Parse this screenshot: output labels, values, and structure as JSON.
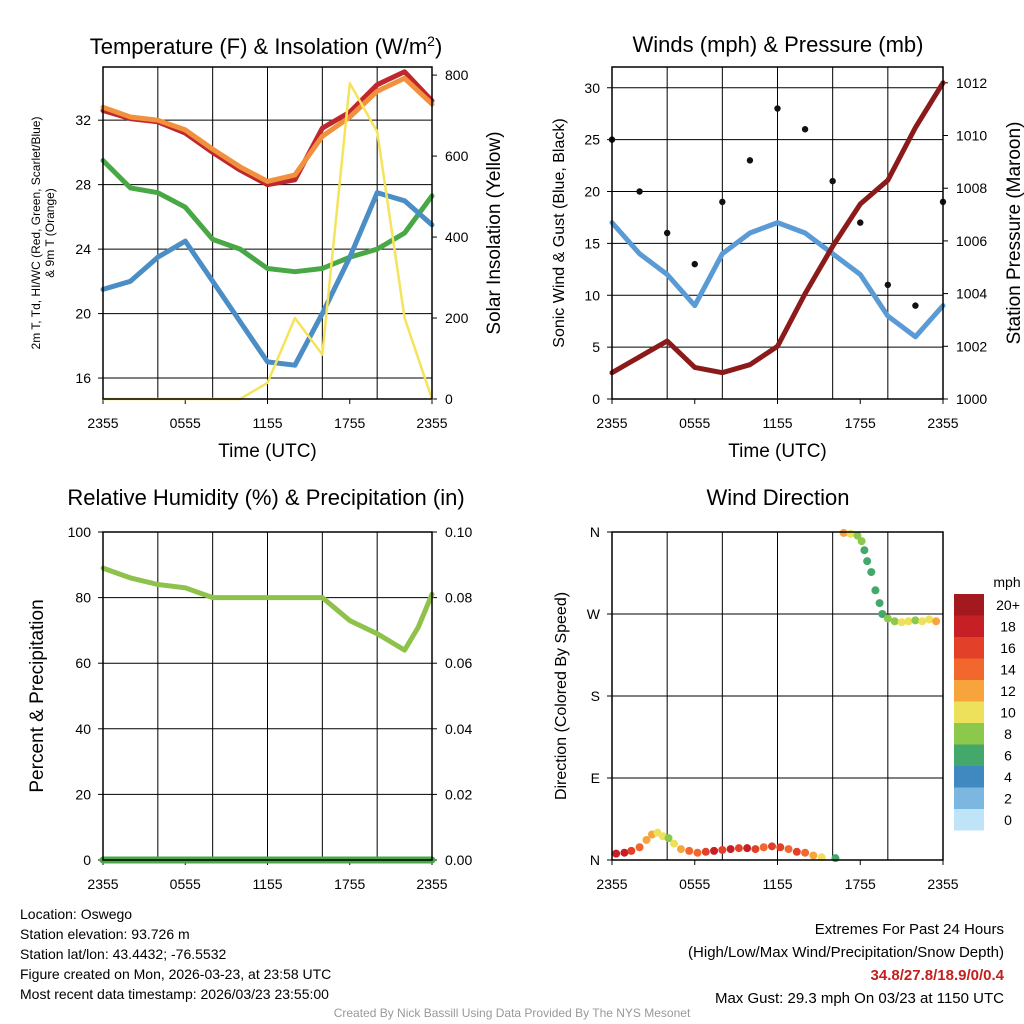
{
  "chart_data": [
    {
      "type": "line",
      "title": "Temperature (F) & Insolation (W/m",
      "title_sup": "2",
      "title_end": ")",
      "xlabel": "Time (UTC)",
      "ylabel_lines": [
        "2m T, Td, HI/WC (Red, Green, Scarlet/Blue)",
        "& 9m T (Orange)"
      ],
      "ylabel_right": "Solar Insolation (Yellow)",
      "x_ticks": [
        "2355",
        "0555",
        "1155",
        "1755",
        "2355"
      ],
      "ylim": [
        14.7,
        35.3
      ],
      "y_ticks": [
        16,
        20,
        24,
        28,
        32
      ],
      "y2lim": [
        0,
        820
      ],
      "y2_ticks": [
        0,
        200,
        400,
        600,
        800
      ],
      "x": [
        0,
        2,
        4,
        6,
        8,
        10,
        12,
        14,
        16,
        18,
        20,
        22,
        24
      ],
      "series": [
        {
          "name": "2m T",
          "color": "#c0272d",
          "values": [
            32.6,
            32.1,
            31.9,
            31.2,
            30.0,
            28.9,
            28.0,
            28.3,
            31.5,
            32.5,
            34.2,
            35.0,
            33.2
          ]
        },
        {
          "name": "9m T",
          "color": "#f2913d",
          "values": [
            32.8,
            32.2,
            32.0,
            31.4,
            30.2,
            29.1,
            28.2,
            28.6,
            31.0,
            32.2,
            33.8,
            34.6,
            33.0
          ]
        },
        {
          "name": "Td",
          "color": "#48a845",
          "values": [
            29.5,
            27.8,
            27.5,
            26.6,
            24.6,
            24.0,
            22.8,
            22.6,
            22.8,
            23.5,
            24.0,
            25.0,
            27.3
          ]
        },
        {
          "name": "WC",
          "color": "#4a8ec5",
          "values": [
            21.5,
            22.0,
            23.5,
            24.5,
            22.0,
            19.5,
            17.0,
            16.8,
            20.0,
            23.5,
            27.5,
            27.0,
            25.5
          ]
        },
        {
          "name": "Insolation",
          "axis": "right",
          "color": "#f5e35c",
          "values": [
            0,
            0,
            0,
            0,
            0,
            0,
            40,
            200,
            110,
            780,
            660,
            200,
            0
          ]
        }
      ]
    },
    {
      "type": "line",
      "title": "Winds (mph) & Pressure (mb)",
      "xlabel": "Time (UTC)",
      "ylabel": "Sonic Wind & Gust (Blue, Black)",
      "ylabel_right": "Station Pressure (Maroon)",
      "x_ticks": [
        "2355",
        "0555",
        "1155",
        "1755",
        "2355"
      ],
      "ylim": [
        0,
        32
      ],
      "y_ticks": [
        0,
        5,
        10,
        15,
        20,
        25,
        30
      ],
      "y2lim": [
        1000,
        1012.6
      ],
      "y2_ticks": [
        1000,
        1002,
        1004,
        1006,
        1008,
        1010,
        1012
      ],
      "x": [
        0,
        2,
        4,
        6,
        8,
        10,
        12,
        14,
        16,
        18,
        20,
        22,
        24
      ],
      "series": [
        {
          "name": "Sonic Wind",
          "color": "#5a9bd5",
          "values": [
            17,
            14,
            12,
            9,
            14,
            16,
            17,
            16,
            14,
            12,
            8,
            6,
            9
          ]
        },
        {
          "name": "Gust",
          "color": "#111111",
          "style": "dots",
          "values": [
            25,
            20,
            16,
            13,
            19,
            23,
            28,
            26,
            21,
            17,
            11,
            9,
            19
          ]
        },
        {
          "name": "Station Pressure",
          "axis": "right",
          "color": "#8b1a1a",
          "values": [
            1001.0,
            1001.6,
            1002.2,
            1001.2,
            1001.0,
            1001.3,
            1002.0,
            1004.0,
            1005.8,
            1007.4,
            1008.3,
            1010.3,
            1012.0
          ]
        }
      ]
    },
    {
      "type": "line",
      "title": "Relative Humidity (%) & Precipitation (in)",
      "ylabel": "Percent & Precipitation",
      "x_ticks": [
        "2355",
        "0555",
        "1155",
        "1755",
        "2355"
      ],
      "ylim": [
        0,
        100
      ],
      "y_ticks": [
        0,
        20,
        40,
        60,
        80,
        100
      ],
      "y2lim": [
        0,
        0.1
      ],
      "y2_ticks": [
        "0.00",
        "0.02",
        "0.04",
        "0.06",
        "0.08",
        "0.10"
      ],
      "x": [
        0,
        2,
        4,
        6,
        8,
        10,
        12,
        14,
        16,
        18,
        20,
        22,
        23,
        24
      ],
      "series": [
        {
          "name": "Relative Humidity",
          "color": "#8ec24a",
          "values": [
            89,
            86,
            84,
            83,
            80,
            80,
            80,
            80,
            80,
            73,
            69,
            64,
            71,
            81
          ]
        },
        {
          "name": "Precipitation",
          "axis": "right",
          "color": "#48a845",
          "values": [
            0,
            0,
            0,
            0,
            0,
            0,
            0,
            0,
            0,
            0,
            0,
            0,
            0,
            0
          ]
        }
      ]
    },
    {
      "type": "scatter",
      "title": "Wind Direction",
      "ylabel": "Direction (Colored By Speed)",
      "x_ticks": [
        "2355",
        "0555",
        "1155",
        "1755",
        "2355"
      ],
      "y_ticks": [
        "N",
        "E",
        "S",
        "W",
        "N"
      ],
      "ylim": [
        0,
        360
      ],
      "legend_title": "mph",
      "legend": [
        {
          "label": "20+",
          "color": "#a3191e"
        },
        {
          "label": "18",
          "color": "#c62026"
        },
        {
          "label": "16",
          "color": "#e3402a"
        },
        {
          "label": "14",
          "color": "#f2672e"
        },
        {
          "label": "12",
          "color": "#f8a43c"
        },
        {
          "label": "10",
          "color": "#ede05a"
        },
        {
          "label": "8",
          "color": "#8cc84b"
        },
        {
          "label": "6",
          "color": "#43a86a"
        },
        {
          "label": "4",
          "color": "#3f88c0"
        },
        {
          "label": "2",
          "color": "#7cb7e2"
        },
        {
          "label": "0",
          "color": "#bfe3f7"
        }
      ],
      "points": [
        {
          "t": 0.3,
          "dir": 7,
          "speed": 18
        },
        {
          "t": 0.9,
          "dir": 8,
          "speed": 18
        },
        {
          "t": 1.4,
          "dir": 10,
          "speed": 16
        },
        {
          "t": 2.0,
          "dir": 14,
          "speed": 14
        },
        {
          "t": 2.5,
          "dir": 22,
          "speed": 12
        },
        {
          "t": 2.9,
          "dir": 28,
          "speed": 12
        },
        {
          "t": 3.3,
          "dir": 30,
          "speed": 10
        },
        {
          "t": 3.7,
          "dir": 26,
          "speed": 10
        },
        {
          "t": 4.1,
          "dir": 24,
          "speed": 8
        },
        {
          "t": 4.5,
          "dir": 18,
          "speed": 10
        },
        {
          "t": 5.0,
          "dir": 12,
          "speed": 12
        },
        {
          "t": 5.6,
          "dir": 10,
          "speed": 14
        },
        {
          "t": 6.2,
          "dir": 8,
          "speed": 14
        },
        {
          "t": 6.8,
          "dir": 9,
          "speed": 16
        },
        {
          "t": 7.4,
          "dir": 10,
          "speed": 18
        },
        {
          "t": 8.0,
          "dir": 11,
          "speed": 16
        },
        {
          "t": 8.6,
          "dir": 12,
          "speed": 18
        },
        {
          "t": 9.2,
          "dir": 13,
          "speed": 16
        },
        {
          "t": 9.8,
          "dir": 13,
          "speed": 18
        },
        {
          "t": 10.4,
          "dir": 12,
          "speed": 16
        },
        {
          "t": 11.0,
          "dir": 14,
          "speed": 14
        },
        {
          "t": 11.6,
          "dir": 15,
          "speed": 16
        },
        {
          "t": 12.2,
          "dir": 14,
          "speed": 16
        },
        {
          "t": 12.8,
          "dir": 12,
          "speed": 14
        },
        {
          "t": 13.4,
          "dir": 9,
          "speed": 16
        },
        {
          "t": 14.0,
          "dir": 8,
          "speed": 14
        },
        {
          "t": 14.6,
          "dir": 5,
          "speed": 12
        },
        {
          "t": 15.2,
          "dir": 3,
          "speed": 10
        },
        {
          "t": 16.2,
          "dir": 2,
          "speed": 6
        },
        {
          "t": 16.8,
          "dir": 359,
          "speed": 12
        },
        {
          "t": 17.3,
          "dir": 358,
          "speed": 10
        },
        {
          "t": 17.8,
          "dir": 356,
          "speed": 8
        },
        {
          "t": 18.1,
          "dir": 350,
          "speed": 8
        },
        {
          "t": 18.3,
          "dir": 340,
          "speed": 6
        },
        {
          "t": 18.5,
          "dir": 328,
          "speed": 6
        },
        {
          "t": 18.8,
          "dir": 316,
          "speed": 6
        },
        {
          "t": 19.1,
          "dir": 296,
          "speed": 6
        },
        {
          "t": 19.4,
          "dir": 282,
          "speed": 6
        },
        {
          "t": 19.6,
          "dir": 270,
          "speed": 6
        },
        {
          "t": 20.0,
          "dir": 265,
          "speed": 8
        },
        {
          "t": 20.5,
          "dir": 262,
          "speed": 8
        },
        {
          "t": 21.0,
          "dir": 261,
          "speed": 10
        },
        {
          "t": 21.5,
          "dir": 262,
          "speed": 10
        },
        {
          "t": 22.0,
          "dir": 263,
          "speed": 8
        },
        {
          "t": 22.5,
          "dir": 262,
          "speed": 10
        },
        {
          "t": 23.0,
          "dir": 264,
          "speed": 10
        },
        {
          "t": 23.5,
          "dir": 262,
          "speed": 12
        }
      ]
    }
  ],
  "info": {
    "location": "Location: Oswego",
    "elevation": "Station elevation: 93.726 m",
    "latlon": "Station lat/lon: 43.4432; -76.5532",
    "created": "Figure created on Mon, 2026-03-23, at 23:58 UTC",
    "recent": "Most recent data timestamp: 2026/03/23 23:55:00"
  },
  "extremes": {
    "heading": "Extremes For Past 24 Hours",
    "subheading": "(High/Low/Max Wind/Precipitation/Snow Depth)",
    "values": "34.8/27.8/18.9/0/0.4",
    "gust": "Max Gust: 29.3 mph On 03/23 at 1150 UTC"
  },
  "credit": "Created By Nick Bassill Using Data Provided By The NYS Mesonet"
}
